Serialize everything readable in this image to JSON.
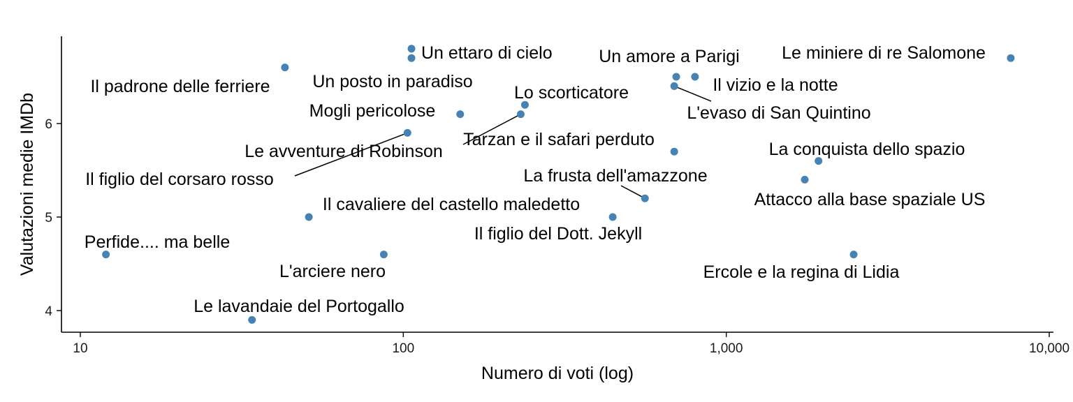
{
  "chart_data": {
    "type": "scatter",
    "title": "",
    "xlabel": "Numero di voti (log)",
    "ylabel": "Valutazioni medie IMDb",
    "x_scale": "log10",
    "xlim": [
      9,
      10000
    ],
    "ylim": [
      3.75,
      6.95
    ],
    "x_ticks": [
      {
        "value": 10,
        "label": "10"
      },
      {
        "value": 100,
        "label": "100"
      },
      {
        "value": 1000,
        "label": "1,000"
      },
      {
        "value": 10000,
        "label": "10,000"
      }
    ],
    "y_ticks": [
      {
        "value": 4,
        "label": "4"
      },
      {
        "value": 5,
        "label": "5"
      },
      {
        "value": 6,
        "label": "6"
      }
    ],
    "grid": false,
    "point_color": "#4682b4",
    "points": [
      {
        "label": "Un ettaro di cielo",
        "x": 106,
        "y": 6.8
      },
      {
        "label": "Un posto in paradiso",
        "x": 106,
        "y": 6.7
      },
      {
        "label": "Le miniere di re Salomone",
        "x": 7600,
        "y": 6.7
      },
      {
        "label": "Il padrone delle ferriere",
        "x": 43,
        "y": 6.6
      },
      {
        "label": "Un amore a Parigi",
        "x": 700,
        "y": 6.5
      },
      {
        "label": "Il vizio e la notte",
        "x": 800,
        "y": 6.5
      },
      {
        "label": "L'evaso di San Quintino",
        "x": 690,
        "y": 6.4
      },
      {
        "label": "Lo scorticatore",
        "x": 238,
        "y": 6.2
      },
      {
        "label": "Mogli pericolose",
        "x": 150,
        "y": 6.1
      },
      {
        "label": "Tarzan e il safari perduto",
        "x": 231,
        "y": 6.1
      },
      {
        "label": "Le avventure di Robinson",
        "x": 103,
        "y": 5.9
      },
      {
        "label": "La frusta dell'amazzone",
        "x": 690,
        "y": 5.7
      },
      {
        "label": "La conquista dello spazio",
        "x": 1930,
        "y": 5.6
      },
      {
        "label": "Attacco alla base spaziale US",
        "x": 1750,
        "y": 5.4
      },
      {
        "label": "Il figlio del corsaro rosso",
        "x": 560,
        "y": 5.2
      },
      {
        "label": "Il cavaliere del castello maledetto",
        "x": 51,
        "y": 5.0
      },
      {
        "label": "Il figlio del Dott. Jekyll",
        "x": 445,
        "y": 5.0
      },
      {
        "label": "Perfide.... ma belle",
        "x": 12,
        "y": 4.6
      },
      {
        "label": "L'arciere nero",
        "x": 87,
        "y": 4.6
      },
      {
        "label": "Ercole e la regina di Lidia",
        "x": 2480,
        "y": 4.6
      },
      {
        "label": "Le lavandaie del Portogallo",
        "x": 34,
        "y": 3.9
      }
    ]
  }
}
